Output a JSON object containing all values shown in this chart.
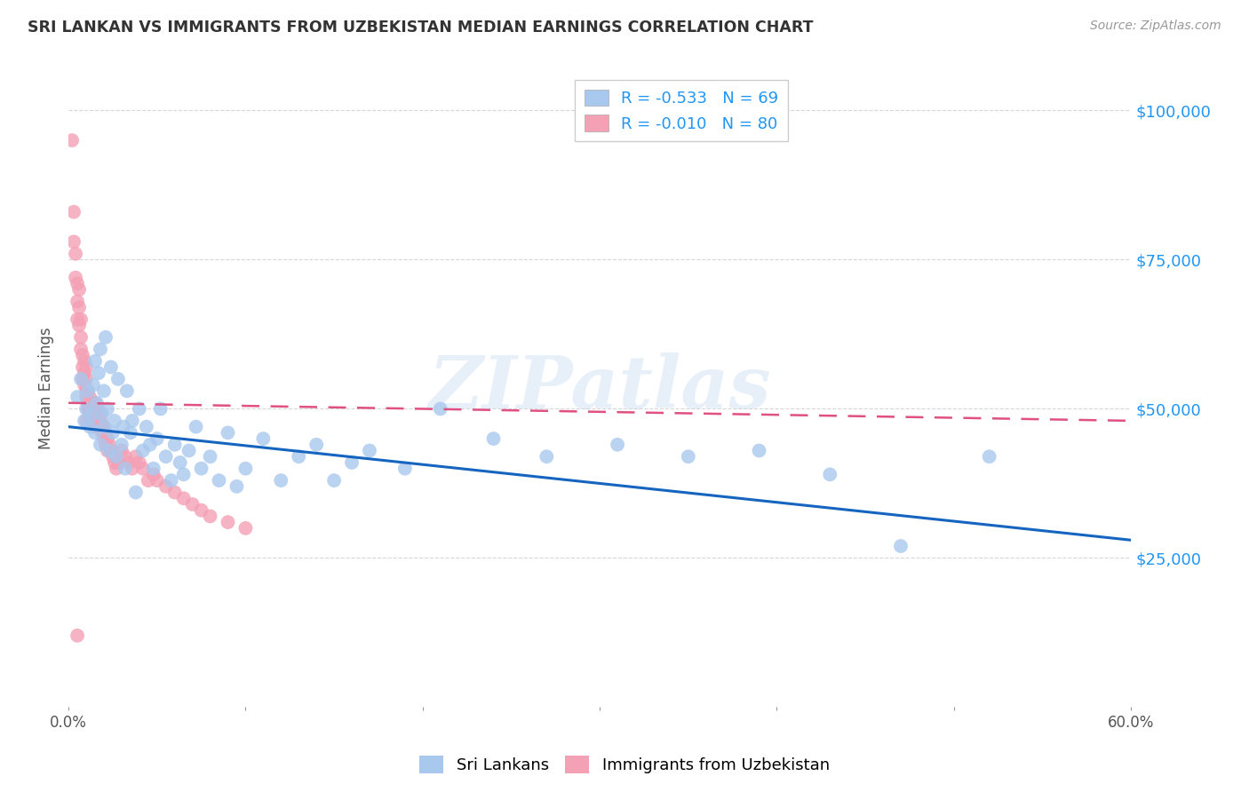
{
  "title": "SRI LANKAN VS IMMIGRANTS FROM UZBEKISTAN MEDIAN EARNINGS CORRELATION CHART",
  "source": "Source: ZipAtlas.com",
  "ylabel": "Median Earnings",
  "y_ticks": [
    25000,
    50000,
    75000,
    100000
  ],
  "y_tick_labels": [
    "$25,000",
    "$50,000",
    "$75,000",
    "$100,000"
  ],
  "watermark": "ZIPatlas",
  "legend_r_blue": "R = -0.533",
  "legend_n_blue": "N = 69",
  "legend_r_pink": "R = -0.010",
  "legend_n_pink": "N = 80",
  "blue_scatter_x": [
    0.005,
    0.007,
    0.009,
    0.01,
    0.011,
    0.012,
    0.013,
    0.014,
    0.015,
    0.015,
    0.016,
    0.017,
    0.018,
    0.018,
    0.019,
    0.02,
    0.02,
    0.021,
    0.022,
    0.023,
    0.024,
    0.025,
    0.026,
    0.027,
    0.028,
    0.03,
    0.031,
    0.032,
    0.033,
    0.035,
    0.036,
    0.038,
    0.04,
    0.042,
    0.044,
    0.046,
    0.048,
    0.05,
    0.052,
    0.055,
    0.058,
    0.06,
    0.063,
    0.065,
    0.068,
    0.072,
    0.075,
    0.08,
    0.085,
    0.09,
    0.095,
    0.1,
    0.11,
    0.12,
    0.13,
    0.14,
    0.15,
    0.16,
    0.17,
    0.19,
    0.21,
    0.24,
    0.27,
    0.31,
    0.35,
    0.39,
    0.43,
    0.47,
    0.52
  ],
  "blue_scatter_y": [
    52000,
    55000,
    48000,
    50000,
    53000,
    47000,
    49000,
    54000,
    58000,
    46000,
    51000,
    56000,
    44000,
    60000,
    49000,
    47000,
    53000,
    62000,
    50000,
    43000,
    57000,
    46000,
    48000,
    42000,
    55000,
    44000,
    47000,
    40000,
    53000,
    46000,
    48000,
    36000,
    50000,
    43000,
    47000,
    44000,
    40000,
    45000,
    50000,
    42000,
    38000,
    44000,
    41000,
    39000,
    43000,
    47000,
    40000,
    42000,
    38000,
    46000,
    37000,
    40000,
    45000,
    38000,
    42000,
    44000,
    38000,
    41000,
    43000,
    40000,
    50000,
    45000,
    42000,
    44000,
    42000,
    43000,
    39000,
    27000,
    42000
  ],
  "pink_scatter_x": [
    0.002,
    0.003,
    0.003,
    0.004,
    0.004,
    0.005,
    0.005,
    0.005,
    0.006,
    0.006,
    0.006,
    0.007,
    0.007,
    0.007,
    0.008,
    0.008,
    0.008,
    0.009,
    0.009,
    0.009,
    0.01,
    0.01,
    0.01,
    0.01,
    0.011,
    0.011,
    0.011,
    0.012,
    0.012,
    0.012,
    0.013,
    0.013,
    0.013,
    0.014,
    0.014,
    0.015,
    0.015,
    0.015,
    0.016,
    0.016,
    0.017,
    0.017,
    0.018,
    0.018,
    0.019,
    0.019,
    0.02,
    0.02,
    0.021,
    0.021,
    0.022,
    0.022,
    0.023,
    0.024,
    0.025,
    0.026,
    0.027,
    0.028,
    0.03,
    0.032,
    0.034,
    0.036,
    0.038,
    0.04,
    0.042,
    0.045,
    0.048,
    0.05,
    0.055,
    0.06,
    0.065,
    0.07,
    0.075,
    0.08,
    0.09,
    0.1,
    0.015,
    0.02,
    0.01,
    0.005
  ],
  "pink_scatter_y": [
    95000,
    83000,
    78000,
    76000,
    72000,
    71000,
    68000,
    65000,
    70000,
    67000,
    64000,
    65000,
    62000,
    60000,
    59000,
    57000,
    55000,
    58000,
    56000,
    54000,
    57000,
    55000,
    53000,
    52000,
    53000,
    51000,
    50000,
    52000,
    50000,
    49000,
    51000,
    50000,
    48000,
    50000,
    49000,
    51000,
    50000,
    48000,
    50000,
    49000,
    50000,
    48000,
    49000,
    48000,
    47000,
    46000,
    47000,
    45000,
    46000,
    44000,
    45000,
    43000,
    44000,
    43000,
    42000,
    41000,
    40000,
    41000,
    43000,
    42000,
    41000,
    40000,
    42000,
    41000,
    40000,
    38000,
    39000,
    38000,
    37000,
    36000,
    35000,
    34000,
    33000,
    32000,
    31000,
    30000,
    47000,
    46000,
    48000,
    12000
  ],
  "blue_line_x": [
    0.0,
    0.6
  ],
  "blue_line_y": [
    47000,
    28000
  ],
  "pink_line_x": [
    0.0,
    0.6
  ],
  "pink_line_y": [
    51000,
    48000
  ],
  "scatter_color_blue": "#A8C8EE",
  "scatter_color_pink": "#F4A0B5",
  "line_color_blue": "#1565C0",
  "line_color_pink": "#E05080",
  "grid_color": "#CCCCCC",
  "background_color": "#FFFFFF",
  "title_color": "#333333",
  "axis_label_color": "#555555",
  "right_tick_color": "#2196F3",
  "legend_color": "#2196F3",
  "xlim": [
    0.0,
    0.6
  ],
  "ylim": [
    0,
    107000
  ],
  "bottom_legend_labels": [
    "Sri Lankans",
    "Immigrants from Uzbekistan"
  ]
}
